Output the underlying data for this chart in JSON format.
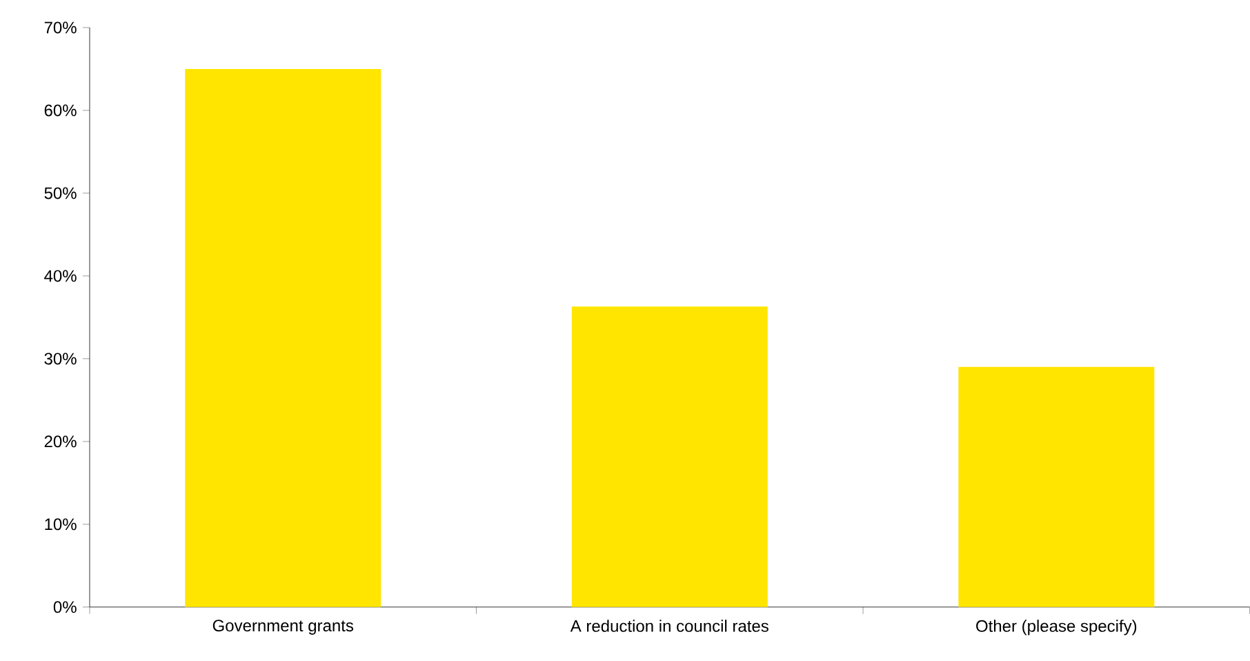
{
  "chart_data": {
    "type": "bar",
    "categories": [
      "Government grants",
      "A reduction in council rates",
      "Other (please specify)"
    ],
    "values": [
      65,
      36.3,
      29
    ],
    "color": "#ffe500",
    "ylim": [
      0,
      70
    ],
    "yticks": [
      {
        "value": 0,
        "label": "0%"
      },
      {
        "value": 10,
        "label": "10%"
      },
      {
        "value": 20,
        "label": "20%"
      },
      {
        "value": 30,
        "label": "30%"
      },
      {
        "value": 40,
        "label": "40%"
      },
      {
        "value": 50,
        "label": "50%"
      },
      {
        "value": 60,
        "label": "60%"
      },
      {
        "value": 70,
        "label": "70%"
      }
    ]
  }
}
